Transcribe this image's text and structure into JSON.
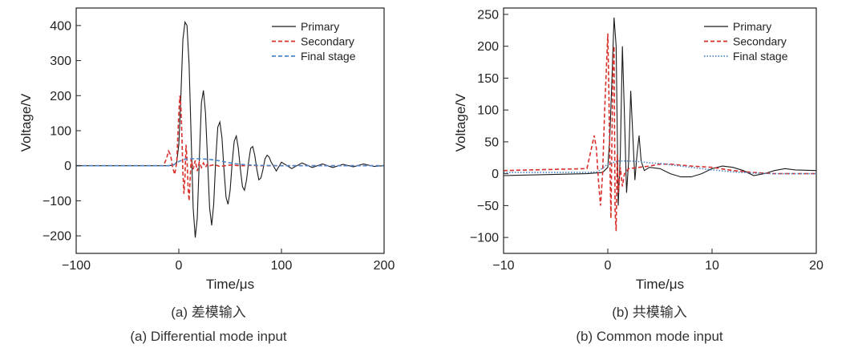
{
  "chart_data": [
    {
      "type": "line",
      "xlabel": "Time/μs",
      "ylabel": "Voltage/V",
      "xlim": [
        -100,
        200
      ],
      "ylim": [
        -250,
        450
      ],
      "xticks": [
        -100,
        0,
        100,
        200
      ],
      "yticks": [
        -200,
        -100,
        0,
        100,
        200,
        300,
        400
      ],
      "grid": false,
      "legend": "top-right",
      "series": [
        {
          "name": "Primary",
          "color": "#1a1a1a",
          "dash": "solid",
          "x": [
            -100,
            -10,
            -5,
            -2,
            0,
            2,
            4,
            6,
            8,
            10,
            12,
            14,
            16,
            18,
            20,
            22,
            24,
            26,
            28,
            30,
            32,
            34,
            36,
            38,
            40,
            42,
            44,
            46,
            48,
            50,
            52,
            54,
            56,
            58,
            60,
            62,
            64,
            66,
            68,
            70,
            72,
            74,
            76,
            78,
            80,
            82,
            84,
            86,
            88,
            90,
            95,
            100,
            110,
            120,
            130,
            140,
            150,
            160,
            170,
            180,
            190,
            200
          ],
          "y": [
            0,
            0,
            2,
            10,
            60,
            200,
            360,
            410,
            400,
            290,
            80,
            -120,
            -205,
            -150,
            20,
            180,
            215,
            150,
            20,
            -120,
            -170,
            -110,
            20,
            110,
            125,
            80,
            -10,
            -90,
            -110,
            -70,
            10,
            70,
            85,
            50,
            -10,
            -60,
            -70,
            -40,
            10,
            50,
            55,
            30,
            -10,
            -40,
            -35,
            -10,
            20,
            30,
            25,
            10,
            -15,
            10,
            -8,
            8,
            -5,
            5,
            -5,
            4,
            -3,
            5,
            -2,
            0
          ]
        },
        {
          "name": "Secondary",
          "color": "#d9302c",
          "dash": "dashed",
          "x": [
            -100,
            -15,
            -12,
            -10,
            -8,
            -6,
            -4,
            -2,
            0,
            1,
            2,
            3,
            4,
            5,
            6,
            7,
            8,
            9,
            10,
            11,
            12,
            14,
            16,
            18,
            20,
            22,
            24,
            26,
            28,
            30,
            35,
            40,
            50,
            60,
            70,
            80,
            100,
            150,
            200
          ],
          "y": [
            0,
            0,
            20,
            42,
            30,
            -5,
            -25,
            10,
            150,
            200,
            170,
            90,
            -20,
            -80,
            -30,
            60,
            20,
            -60,
            -100,
            -40,
            20,
            -10,
            15,
            -15,
            10,
            -5,
            8,
            -4,
            5,
            0,
            3,
            -2,
            2,
            0,
            1,
            0,
            0,
            0,
            0
          ]
        },
        {
          "name": "Final stage",
          "color": "#4a86c8",
          "dash": "dashed",
          "x": [
            -100,
            -10,
            -5,
            0,
            5,
            10,
            20,
            30,
            40,
            50,
            60,
            70,
            80,
            100,
            150,
            200
          ],
          "y": [
            0,
            0,
            3,
            12,
            18,
            20,
            20,
            18,
            14,
            8,
            4,
            2,
            1,
            0,
            0,
            0
          ]
        }
      ]
    },
    {
      "type": "line",
      "xlabel": "Time/μs",
      "ylabel": "Voltage/V",
      "xlim": [
        -10,
        20
      ],
      "ylim": [
        -125,
        260
      ],
      "xticks": [
        -10,
        0,
        10,
        20
      ],
      "yticks": [
        -100,
        -50,
        0,
        50,
        100,
        150,
        200,
        250
      ],
      "grid": false,
      "legend": "top-right",
      "series": [
        {
          "name": "Primary",
          "color": "#1a1a1a",
          "dash": "solid",
          "x": [
            -10,
            -2,
            -0.5,
            0,
            0.2,
            0.4,
            0.6,
            0.8,
            1.0,
            1.2,
            1.4,
            1.6,
            1.8,
            2.0,
            2.2,
            2.4,
            2.6,
            2.8,
            3.0,
            3.2,
            3.5,
            4,
            5,
            6,
            7,
            8,
            9,
            10,
            11,
            12,
            13,
            14,
            15,
            16,
            17,
            18,
            20
          ],
          "y": [
            -3,
            0,
            2,
            10,
            60,
            150,
            245,
            200,
            -50,
            30,
            200,
            90,
            -30,
            20,
            130,
            60,
            -10,
            30,
            60,
            20,
            5,
            10,
            8,
            0,
            -5,
            -5,
            0,
            8,
            12,
            10,
            5,
            -3,
            0,
            5,
            8,
            6,
            5
          ]
        },
        {
          "name": "Secondary",
          "color": "#d9302c",
          "dash": "dashed",
          "x": [
            -10,
            -2,
            -1.3,
            -1.1,
            -0.9,
            -0.7,
            -0.5,
            -0.3,
            -0.1,
            0,
            0.1,
            0.2,
            0.3,
            0.4,
            0.5,
            0.6,
            0.7,
            0.8,
            0.9,
            1.0,
            1.2,
            1.4,
            1.6,
            2,
            3,
            4,
            5,
            6,
            8,
            10,
            12,
            14,
            16,
            20
          ],
          "y": [
            5,
            8,
            60,
            40,
            -10,
            -50,
            0,
            100,
            180,
            220,
            130,
            20,
            -70,
            60,
            170,
            200,
            -60,
            -90,
            30,
            -30,
            10,
            -20,
            0,
            8,
            10,
            12,
            15,
            15,
            12,
            10,
            5,
            2,
            0,
            0
          ]
        },
        {
          "name": "Final stage",
          "color": "#4a86c8",
          "dash": "dotted",
          "x": [
            -10,
            -2,
            -1,
            0,
            1,
            2,
            3,
            4,
            5,
            6,
            7,
            8,
            9,
            10,
            12,
            14,
            16,
            18,
            20
          ],
          "y": [
            2,
            2,
            3,
            15,
            20,
            20,
            19,
            17,
            16,
            14,
            12,
            10,
            8,
            6,
            3,
            1,
            0,
            0,
            0
          ]
        }
      ]
    }
  ],
  "captions": {
    "a_cn": "(a) 差模输入",
    "a_en": "(a) Differential mode input",
    "b_cn": "(b) 共模输入",
    "b_en": "(b) Common mode input"
  }
}
